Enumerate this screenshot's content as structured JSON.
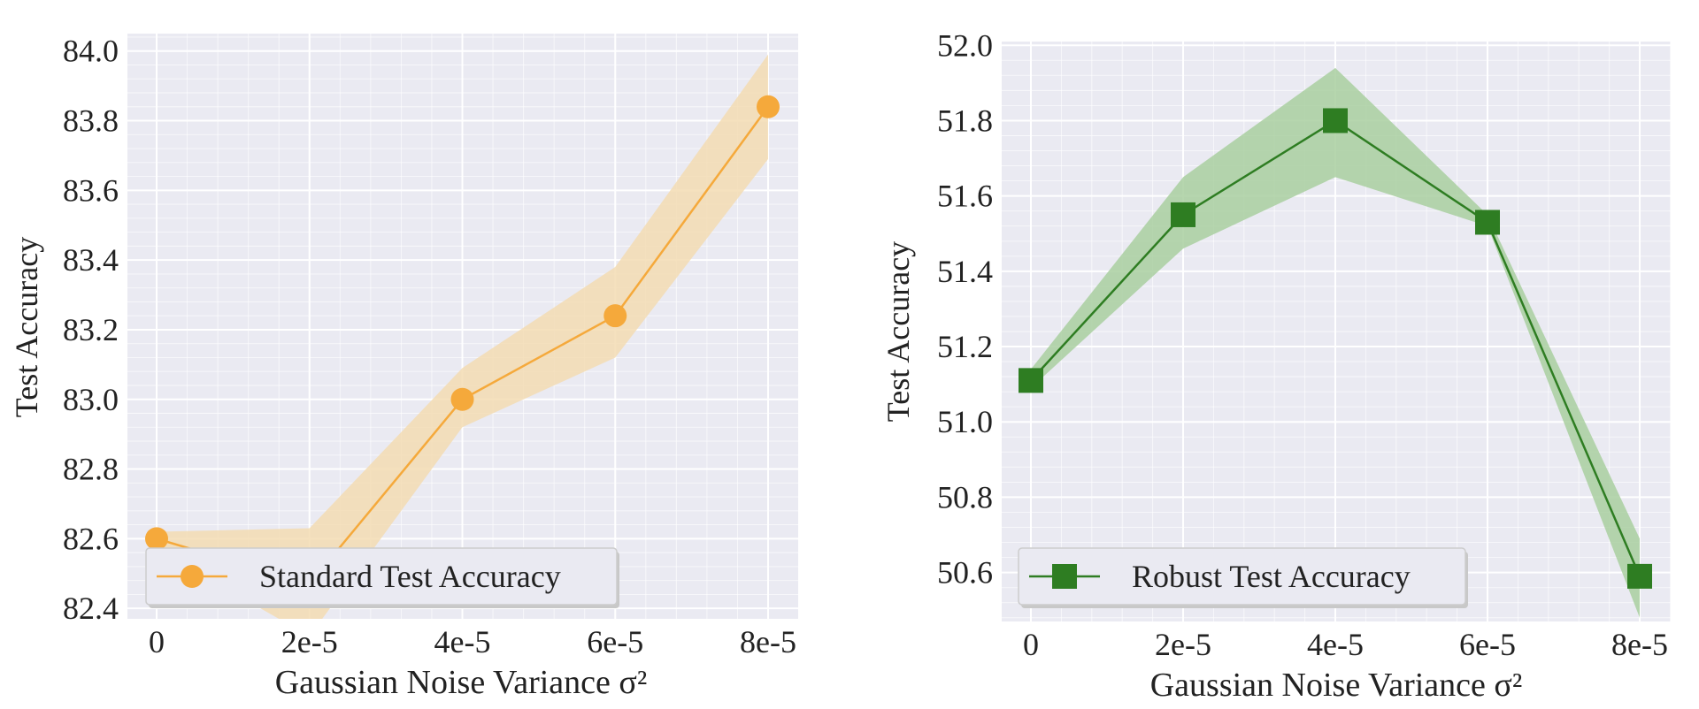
{
  "colors": {
    "panel_background": "#eaeaf2",
    "grid": "#ffffff",
    "standard_series": "#f5a93b",
    "standard_band": "#f3dcb3",
    "robust_series": "#2e7d22",
    "robust_band": "#a9cfa0"
  },
  "chart_data": [
    {
      "type": "line",
      "markers": "circle",
      "x_ticks": [
        "0",
        "2e-5",
        "4e-5",
        "6e-5",
        "8e-5"
      ],
      "x": [
        0,
        2e-05,
        4e-05,
        6e-05,
        8e-05
      ],
      "xlabel": "Gaussian Noise Variance σ²",
      "ylabel": "Test Accuracy",
      "ylim": [
        82.37,
        84.05
      ],
      "y_ticks": [
        "82.4",
        "82.6",
        "82.8",
        "83.0",
        "83.2",
        "83.4",
        "83.6",
        "83.8",
        "84.0"
      ],
      "grid": true,
      "legend_position": "lower-left",
      "series": [
        {
          "name": "Standard Test Accuracy",
          "values": [
            82.6,
            82.47,
            83.0,
            83.24,
            83.84
          ],
          "band_lower": [
            82.57,
            82.32,
            82.92,
            83.12,
            83.69
          ],
          "band_upper": [
            82.62,
            82.63,
            83.09,
            83.38,
            83.99
          ]
        }
      ]
    },
    {
      "type": "line",
      "markers": "square",
      "x_ticks": [
        "0",
        "2e-5",
        "4e-5",
        "6e-5",
        "8e-5"
      ],
      "x": [
        0,
        2e-05,
        4e-05,
        6e-05,
        8e-05
      ],
      "xlabel": "Gaussian Noise Variance σ²",
      "ylabel": "Test Accuracy",
      "ylim": [
        50.47,
        52.01
      ],
      "y_ticks": [
        "50.6",
        "50.8",
        "51.0",
        "51.2",
        "51.4",
        "51.6",
        "51.8",
        "52.0"
      ],
      "grid": true,
      "legend_position": "lower-left",
      "series": [
        {
          "name": "Robust Test Accuracy",
          "values": [
            51.11,
            51.55,
            51.8,
            51.53,
            50.59
          ],
          "band_lower": [
            51.09,
            51.46,
            51.65,
            51.52,
            50.48
          ],
          "band_upper": [
            51.14,
            51.65,
            51.94,
            51.55,
            50.69
          ]
        }
      ]
    }
  ]
}
